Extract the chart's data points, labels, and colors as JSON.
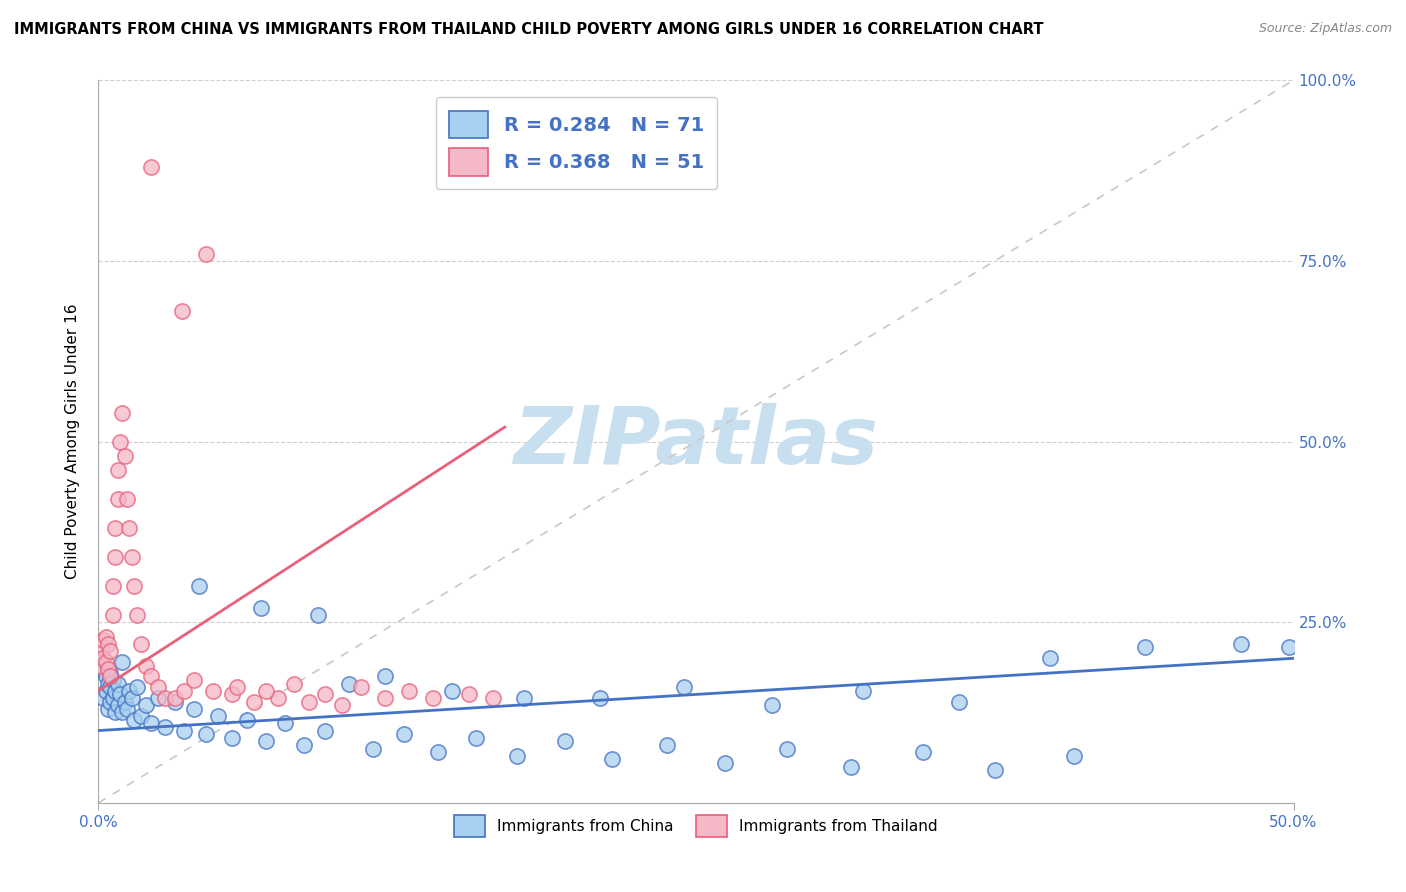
{
  "title": "IMMIGRANTS FROM CHINA VS IMMIGRANTS FROM THAILAND CHILD POVERTY AMONG GIRLS UNDER 16 CORRELATION CHART",
  "source": "Source: ZipAtlas.com",
  "ylabel": "Child Poverty Among Girls Under 16",
  "color_china": "#A8D0F0",
  "color_thailand": "#F5B8C8",
  "color_china_line": "#4472C4",
  "color_thailand_line": "#E8607A",
  "color_diag": "#C8C8C8",
  "watermark": "ZIPatlas",
  "watermark_color": "#C8DFF0",
  "china_x": [
    0.001,
    0.002,
    0.002,
    0.003,
    0.003,
    0.004,
    0.004,
    0.005,
    0.005,
    0.005,
    0.006,
    0.006,
    0.007,
    0.007,
    0.008,
    0.008,
    0.009,
    0.01,
    0.01,
    0.011,
    0.012,
    0.013,
    0.014,
    0.015,
    0.016,
    0.018,
    0.02,
    0.022,
    0.025,
    0.028,
    0.032,
    0.036,
    0.04,
    0.045,
    0.05,
    0.056,
    0.062,
    0.07,
    0.078,
    0.086,
    0.095,
    0.105,
    0.115,
    0.128,
    0.142,
    0.158,
    0.175,
    0.195,
    0.215,
    0.238,
    0.262,
    0.288,
    0.315,
    0.345,
    0.375,
    0.408,
    0.042,
    0.068,
    0.092,
    0.12,
    0.148,
    0.178,
    0.21,
    0.245,
    0.282,
    0.32,
    0.36,
    0.398,
    0.438,
    0.478,
    0.498
  ],
  "china_y": [
    0.185,
    0.145,
    0.2,
    0.155,
    0.175,
    0.13,
    0.165,
    0.14,
    0.16,
    0.18,
    0.145,
    0.17,
    0.125,
    0.155,
    0.135,
    0.165,
    0.15,
    0.125,
    0.195,
    0.14,
    0.13,
    0.155,
    0.145,
    0.115,
    0.16,
    0.12,
    0.135,
    0.11,
    0.145,
    0.105,
    0.14,
    0.1,
    0.13,
    0.095,
    0.12,
    0.09,
    0.115,
    0.085,
    0.11,
    0.08,
    0.1,
    0.165,
    0.075,
    0.095,
    0.07,
    0.09,
    0.065,
    0.085,
    0.06,
    0.08,
    0.055,
    0.075,
    0.05,
    0.07,
    0.045,
    0.065,
    0.3,
    0.27,
    0.26,
    0.175,
    0.155,
    0.145,
    0.145,
    0.16,
    0.135,
    0.155,
    0.14,
    0.2,
    0.215,
    0.22,
    0.215
  ],
  "thailand_x": [
    0.001,
    0.001,
    0.002,
    0.002,
    0.003,
    0.003,
    0.004,
    0.004,
    0.005,
    0.005,
    0.006,
    0.006,
    0.007,
    0.007,
    0.008,
    0.008,
    0.009,
    0.01,
    0.011,
    0.012,
    0.013,
    0.014,
    0.015,
    0.016,
    0.018,
    0.02,
    0.022,
    0.025,
    0.028,
    0.032,
    0.036,
    0.04,
    0.048,
    0.056,
    0.065,
    0.075,
    0.088,
    0.102,
    0.12,
    0.14,
    0.165,
    0.022,
    0.035,
    0.045,
    0.058,
    0.07,
    0.082,
    0.095,
    0.11,
    0.13,
    0.155
  ],
  "thailand_y": [
    0.19,
    0.215,
    0.2,
    0.225,
    0.195,
    0.23,
    0.185,
    0.22,
    0.175,
    0.21,
    0.26,
    0.3,
    0.34,
    0.38,
    0.42,
    0.46,
    0.5,
    0.54,
    0.48,
    0.42,
    0.38,
    0.34,
    0.3,
    0.26,
    0.22,
    0.19,
    0.175,
    0.16,
    0.145,
    0.145,
    0.155,
    0.17,
    0.155,
    0.15,
    0.14,
    0.145,
    0.14,
    0.135,
    0.145,
    0.145,
    0.145,
    0.88,
    0.68,
    0.76,
    0.16,
    0.155,
    0.165,
    0.15,
    0.16,
    0.155,
    0.15
  ],
  "china_trend_x": [
    0.0,
    0.5
  ],
  "china_trend_y": [
    0.1,
    0.2
  ],
  "thailand_trend_x": [
    0.0,
    0.17
  ],
  "thailand_trend_y": [
    0.155,
    0.52
  ],
  "xlim": [
    0,
    0.5
  ],
  "ylim": [
    0,
    1.0
  ],
  "ytick_positions": [
    0,
    0.25,
    0.5,
    0.75,
    1.0
  ],
  "ytick_labels_right": [
    "",
    "25.0%",
    "50.0%",
    "75.0%",
    "100.0%"
  ],
  "xtick_positions": [
    0,
    0.5
  ],
  "xtick_labels": [
    "0.0%",
    "50.0%"
  ]
}
